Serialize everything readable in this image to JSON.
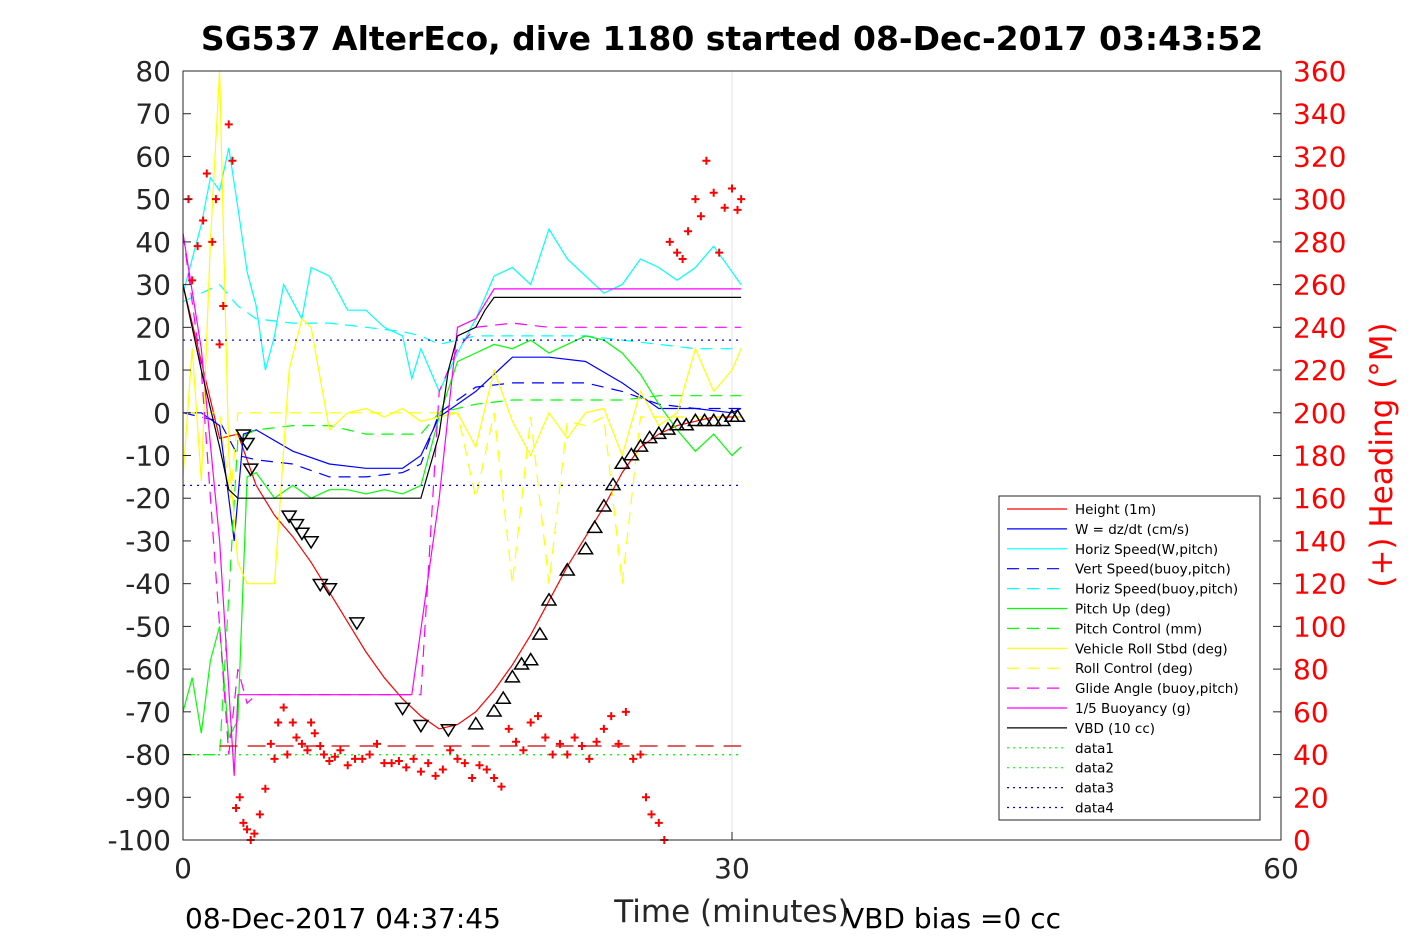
{
  "chart_data": {
    "type": "line",
    "title": "SG537 AlterEco, dive 1180 started 08-Dec-2017 03:43:52",
    "xlabel": "Time (minutes)",
    "ylabel_right": "(+) Heading (°M)",
    "footer_left": "08-Dec-2017 04:37:45",
    "footer_right": "VBD bias =0 cc",
    "xlim": [
      0,
      60
    ],
    "ylim": [
      -100,
      80
    ],
    "ylim_right": [
      0,
      360
    ],
    "x_ticks": [
      "0",
      "30",
      "60"
    ],
    "y_ticks": [
      "80",
      "70",
      "60",
      "50",
      "40",
      "30",
      "20",
      "10",
      "0",
      "-10",
      "-20",
      "-30",
      "-40",
      "-50",
      "-60",
      "-70",
      "-80",
      "-90",
      "-100"
    ],
    "y2_ticks": [
      "360",
      "340",
      "320",
      "300",
      "280",
      "260",
      "240",
      "220",
      "200",
      "180",
      "160",
      "140",
      "120",
      "100",
      "80",
      "60",
      "40",
      "20",
      "0"
    ],
    "grid": "x at 30 min only",
    "legend_position": "bottom-right",
    "legend": [
      {
        "label": "Height (1m)",
        "color": "#ff0000",
        "style": "solid"
      },
      {
        "label": "W = dz/dt (cm/s)",
        "color": "#0000ff",
        "style": "solid"
      },
      {
        "label": "Horiz Speed(W,pitch)",
        "color": "#00ffff",
        "style": "solid"
      },
      {
        "label": "Vert Speed(buoy,pitch)",
        "color": "#0000ff",
        "style": "dashed"
      },
      {
        "label": "Horiz Speed(buoy,pitch)",
        "color": "#00ffff",
        "style": "dashed"
      },
      {
        "label": "Pitch Up (deg)",
        "color": "#00ff00",
        "style": "solid"
      },
      {
        "label": "Pitch Control (mm)",
        "color": "#00ff00",
        "style": "dashed"
      },
      {
        "label": "Vehicle Roll Stbd (deg)",
        "color": "#ffff00",
        "style": "solid"
      },
      {
        "label": "Roll Control (deg)",
        "color": "#ffff00",
        "style": "dashed"
      },
      {
        "label": "Glide Angle (buoy,pitch)",
        "color": "#ff00ff",
        "style": "dashed"
      },
      {
        "label": "1/5 Buoyancy (g)",
        "color": "#ff00ff",
        "style": "solid"
      },
      {
        "label": "VBD (10 cc)",
        "color": "#000000",
        "style": "solid"
      },
      {
        "label": "data1",
        "color": "#00ff00",
        "style": "dotted"
      },
      {
        "label": "data2",
        "color": "#00ff00",
        "style": "dotted"
      },
      {
        "label": "data3",
        "color": "#0000ff",
        "style": "dotted"
      },
      {
        "label": "data4",
        "color": "#0000ff",
        "style": "dotted"
      }
    ],
    "series": [
      {
        "name": "Height (1m)",
        "color": "#ff0000",
        "dash": "",
        "x": [
          0,
          1,
          2,
          3,
          4,
          5,
          6,
          7,
          8,
          9,
          10,
          11,
          12,
          13,
          14,
          15,
          16,
          17,
          18,
          19,
          20,
          21,
          22,
          23,
          24,
          25,
          26,
          27,
          28,
          29,
          30,
          30.5
        ],
        "y": [
          30,
          12,
          -6,
          -5,
          -17,
          -24,
          -29,
          -35,
          -42,
          -49,
          -56,
          -62,
          -67,
          -71,
          -74,
          -73,
          -70,
          -65,
          -59,
          -52,
          -44,
          -36,
          -29,
          -22,
          -14,
          -8,
          -5,
          -3,
          -2,
          -1,
          -1,
          -1
        ]
      },
      {
        "name": "W = dz/dt (cm/s)",
        "color": "#0000ff",
        "dash": "",
        "x": [
          0,
          1,
          2,
          2.8,
          3.3,
          4,
          6,
          8,
          10,
          12,
          13,
          14,
          16,
          18,
          20,
          22,
          24,
          25,
          26,
          28,
          30,
          30.5
        ],
        "y": [
          0,
          0,
          -3,
          -30,
          -5,
          -4,
          -9,
          -12,
          -13,
          -13,
          -10,
          -1,
          5,
          13,
          13,
          12,
          7,
          4,
          1,
          1,
          0,
          1
        ]
      },
      {
        "name": "Horiz Speed(W,pitch)",
        "color": "#00ffff",
        "dash": "",
        "x": [
          0,
          0.5,
          1,
          1.5,
          2,
          2.5,
          3,
          3.5,
          4,
          4.5,
          5,
          5.5,
          6,
          6.5,
          7,
          8,
          9,
          10,
          11,
          12,
          12.5,
          13,
          14,
          15,
          16,
          17,
          18,
          19,
          20,
          21,
          22,
          23,
          24,
          25,
          26,
          27,
          28,
          29,
          30,
          30.5
        ],
        "y": [
          28,
          36,
          44,
          55,
          52,
          62,
          48,
          33,
          25,
          10,
          18,
          30,
          26,
          22,
          34,
          32,
          24,
          24,
          20,
          18,
          8,
          15,
          5,
          14,
          22,
          32,
          34,
          30,
          43,
          36,
          32,
          28,
          30,
          36,
          34,
          31,
          34,
          39,
          33,
          30
        ]
      },
      {
        "name": "Vert Speed(buoy,pitch)",
        "color": "#0000ff",
        "dash": "12,8",
        "x": [
          0,
          2,
          3,
          4,
          6,
          8,
          10,
          12,
          13,
          14,
          16,
          18,
          20,
          22,
          24,
          26,
          28,
          30,
          30.5
        ],
        "y": [
          0,
          -2,
          -10,
          -11,
          -12,
          -15,
          -15,
          -14,
          -12,
          0,
          6,
          7,
          7,
          7,
          5,
          2,
          1,
          1,
          1
        ]
      },
      {
        "name": "Horiz Speed(buoy,pitch)",
        "color": "#00ffff",
        "dash": "12,8",
        "x": [
          0,
          2,
          3,
          4,
          6,
          8,
          10,
          12,
          13,
          14,
          16,
          18,
          20,
          22,
          24,
          26,
          28,
          30,
          30.5
        ],
        "y": [
          26,
          30,
          25,
          22,
          21,
          21,
          20,
          19,
          18,
          16,
          18,
          18,
          18,
          18,
          17,
          16,
          15,
          15,
          15
        ]
      },
      {
        "name": "Pitch Up (deg)",
        "color": "#00ff00",
        "dash": "",
        "x": [
          0,
          0.5,
          1,
          1.5,
          2,
          2.5,
          3,
          3.5,
          4,
          5,
          6,
          7,
          8,
          9,
          10,
          11,
          12,
          13,
          14,
          15,
          16,
          17,
          18,
          19,
          20,
          21,
          22,
          23,
          24,
          25,
          26,
          27,
          28,
          29,
          30,
          30.5
        ],
        "y": [
          -70,
          -62,
          -75,
          -58,
          -50,
          -76,
          -72,
          -15,
          -14,
          -20,
          -17,
          -20,
          -18,
          -18,
          -19,
          -18,
          -19,
          -17,
          -1,
          12,
          14,
          16,
          15,
          17,
          14,
          16,
          18,
          17,
          14,
          9,
          2,
          -4,
          -9,
          -5,
          -10,
          -8
        ]
      },
      {
        "name": "Pitch Control (mm)",
        "color": "#00ff00",
        "dash": "12,8",
        "x": [
          0,
          1,
          2,
          3,
          4,
          6,
          8,
          10,
          12,
          13,
          14,
          16,
          18,
          20,
          22,
          24,
          26,
          28,
          30,
          30.5
        ],
        "y": [
          -80,
          -80,
          -80,
          -6,
          -4,
          -3,
          -3,
          -5,
          -5,
          -5,
          0,
          2,
          3,
          3,
          3,
          3,
          4,
          4,
          4,
          4
        ]
      },
      {
        "name": "Vehicle Roll Stbd (deg)",
        "color": "#ffff00",
        "dash": "",
        "x": [
          0,
          0.5,
          1,
          1.5,
          2,
          2.5,
          3,
          3.5,
          4,
          5,
          5.8,
          6.5,
          7,
          8,
          9,
          10,
          11,
          12,
          13,
          14,
          15,
          16,
          17,
          18,
          19,
          20,
          21,
          22,
          23,
          24,
          25,
          26,
          27,
          28,
          29,
          30,
          30.5
        ],
        "y": [
          -15,
          15,
          -16,
          40,
          80,
          -10,
          -35,
          -40,
          -40,
          -40,
          10,
          22,
          20,
          -4,
          0,
          1,
          -1,
          1,
          -2,
          -1,
          0,
          -8,
          10,
          -2,
          -10,
          0,
          -6,
          0,
          1,
          -10,
          5,
          -3,
          0,
          15,
          5,
          10,
          15
        ]
      },
      {
        "name": "Roll Control (deg)",
        "color": "#ffff00",
        "dash": "12,8",
        "x": [
          0,
          2,
          2.6,
          3,
          4,
          6,
          8,
          10,
          12,
          13,
          14,
          15,
          16,
          17,
          18,
          19,
          20,
          21,
          22,
          23,
          24,
          25,
          26,
          27,
          28,
          29,
          30,
          30.5
        ],
        "y": [
          0,
          0,
          -20,
          0,
          0,
          0,
          0,
          0,
          0,
          0,
          0,
          0,
          -20,
          0,
          -40,
          -1,
          -40,
          -2,
          -3,
          -1,
          -40,
          -1,
          -1,
          -1,
          -1,
          -1,
          -1,
          -1
        ]
      },
      {
        "name": "Glide Angle (buoy,pitch)",
        "color": "#ff00ff",
        "dash": "12,8",
        "x": [
          0,
          1,
          2,
          2.5,
          3,
          3.5,
          4,
          6,
          8,
          10,
          12,
          13,
          14,
          15,
          16,
          18,
          20,
          22,
          24,
          26,
          28,
          30,
          30.5
        ],
        "y": [
          42,
          10,
          -50,
          -80,
          -60,
          -68,
          -66,
          -66,
          -66,
          -66,
          -66,
          -66,
          5,
          15,
          20,
          21,
          20,
          20,
          20,
          20,
          20,
          20,
          20
        ]
      },
      {
        "name": "1/5 Buoyancy (g)",
        "color": "#ff00ff",
        "dash": "",
        "x": [
          0,
          1,
          2,
          2.8,
          3,
          4,
          6,
          8,
          10,
          12,
          12.5,
          14,
          15,
          16,
          17,
          18,
          20,
          22,
          24,
          26,
          28,
          30,
          30.5
        ],
        "y": [
          42,
          15,
          -30,
          -85,
          -66,
          -66,
          -66,
          -66,
          -66,
          -66,
          -66,
          -20,
          20,
          22,
          29,
          29,
          29,
          29,
          29,
          29,
          29,
          29,
          29
        ]
      },
      {
        "name": "VBD (10 cc)",
        "color": "#000000",
        "dash": "",
        "x": [
          0,
          1,
          2,
          2.5,
          3,
          4,
          6,
          8,
          10,
          12,
          13,
          14,
          14.5,
          15,
          16,
          16.5,
          17,
          18,
          20,
          22,
          24,
          26,
          28,
          30,
          30.5
        ],
        "y": [
          30,
          10,
          -8,
          -18,
          -20,
          -20,
          -20,
          -20,
          -20,
          -20,
          -20,
          -5,
          10,
          18,
          20,
          24,
          27,
          27,
          27,
          27,
          27,
          27,
          27,
          27,
          27
        ]
      },
      {
        "name": "data1",
        "color": "#00ff00",
        "dash": "2,5",
        "x": [
          0,
          30.5
        ],
        "y": [
          -80,
          -80
        ]
      },
      {
        "name": "data2",
        "color": "#00ff00",
        "dash": "2,5",
        "x": [
          0,
          30.5
        ],
        "y": [
          -80,
          -80
        ]
      },
      {
        "name": "data3",
        "color": "#0000ff",
        "dash": "2,5",
        "x": [
          0,
          30.5
        ],
        "y": [
          17,
          17
        ]
      },
      {
        "name": "data4",
        "color": "#0000ff",
        "dash": "2,5",
        "x": [
          0,
          30.5
        ],
        "y": [
          -17,
          -17
        ]
      }
    ],
    "heading_reference": {
      "color": "#cc0000",
      "dash": "18,10",
      "x": [
        2,
        30.5
      ],
      "y2": [
        44,
        44
      ]
    },
    "heading_markers": {
      "color": "#ff0000",
      "x": [
        0.3,
        0.5,
        0.8,
        1.1,
        1.3,
        1.6,
        1.8,
        2,
        2.2,
        2.5,
        2.7,
        2.9,
        3.1,
        3.3,
        3.5,
        3.7,
        3.9,
        4.2,
        4.5,
        4.8,
        5,
        5.2,
        5.5,
        5.7,
        6,
        6.2,
        6.5,
        6.8,
        7,
        7.2,
        7.5,
        7.7,
        8,
        8.3,
        8.6,
        9,
        9.4,
        9.8,
        10.2,
        10.6,
        11,
        11.4,
        11.8,
        12.2,
        12.6,
        13,
        13.4,
        13.8,
        14.2,
        14.6,
        15,
        15.4,
        15.8,
        16.2,
        16.6,
        17,
        17.4,
        17.8,
        18.2,
        18.6,
        19,
        19.4,
        19.8,
        20.2,
        20.6,
        21,
        21.4,
        21.8,
        22.2,
        22.6,
        23,
        23.4,
        23.8,
        24.2,
        24.6,
        25,
        25.3,
        25.6,
        26,
        26.3,
        26.6,
        27,
        27.3,
        27.6,
        28,
        28.3,
        28.6,
        29,
        29.3,
        29.6,
        30,
        30.3,
        30.5
      ],
      "y2": [
        300,
        262,
        278,
        290,
        312,
        280,
        300,
        232,
        250,
        335,
        318,
        15,
        20,
        8,
        5,
        0,
        3,
        12,
        24,
        45,
        38,
        55,
        62,
        40,
        55,
        48,
        45,
        42,
        55,
        50,
        44,
        40,
        37,
        39,
        42,
        35,
        38,
        38,
        40,
        45,
        36,
        36,
        37,
        34,
        38,
        32,
        36,
        30,
        33,
        42,
        38,
        36,
        29,
        35,
        33,
        29,
        25,
        52,
        46,
        42,
        55,
        58,
        48,
        40,
        45,
        40,
        48,
        44,
        38,
        46,
        52,
        58,
        45,
        60,
        38,
        40,
        20,
        12,
        8,
        0,
        280,
        275,
        272,
        285,
        300,
        292,
        318,
        303,
        275,
        296,
        305,
        295,
        300
      ]
    },
    "depth_markers": {
      "color": "#000000",
      "x": [
        3.3,
        3.5,
        3.7,
        5.8,
        6.2,
        6.5,
        7,
        7.5,
        8,
        9.5,
        12,
        13,
        14.5,
        16,
        17,
        17.5,
        18,
        18.5,
        19,
        19.5,
        20,
        21,
        22,
        22.5,
        23,
        23.5,
        24,
        24.5,
        25,
        25.5,
        26,
        26.5,
        27,
        27.5,
        28,
        28.5,
        29,
        29.5,
        30,
        30.3
      ],
      "y": [
        -5,
        -7,
        -13,
        -24,
        -26,
        -28,
        -30,
        -40,
        -41,
        -49,
        -69,
        -73,
        -74,
        -73,
        -70,
        -67,
        -62,
        -59,
        -58,
        -52,
        -44,
        -37,
        -32,
        -27,
        -22,
        -17,
        -12,
        -10,
        -8,
        -6,
        -5,
        -4,
        -3,
        -3,
        -2,
        -2,
        -2,
        -2,
        -1,
        -1
      ]
    }
  }
}
